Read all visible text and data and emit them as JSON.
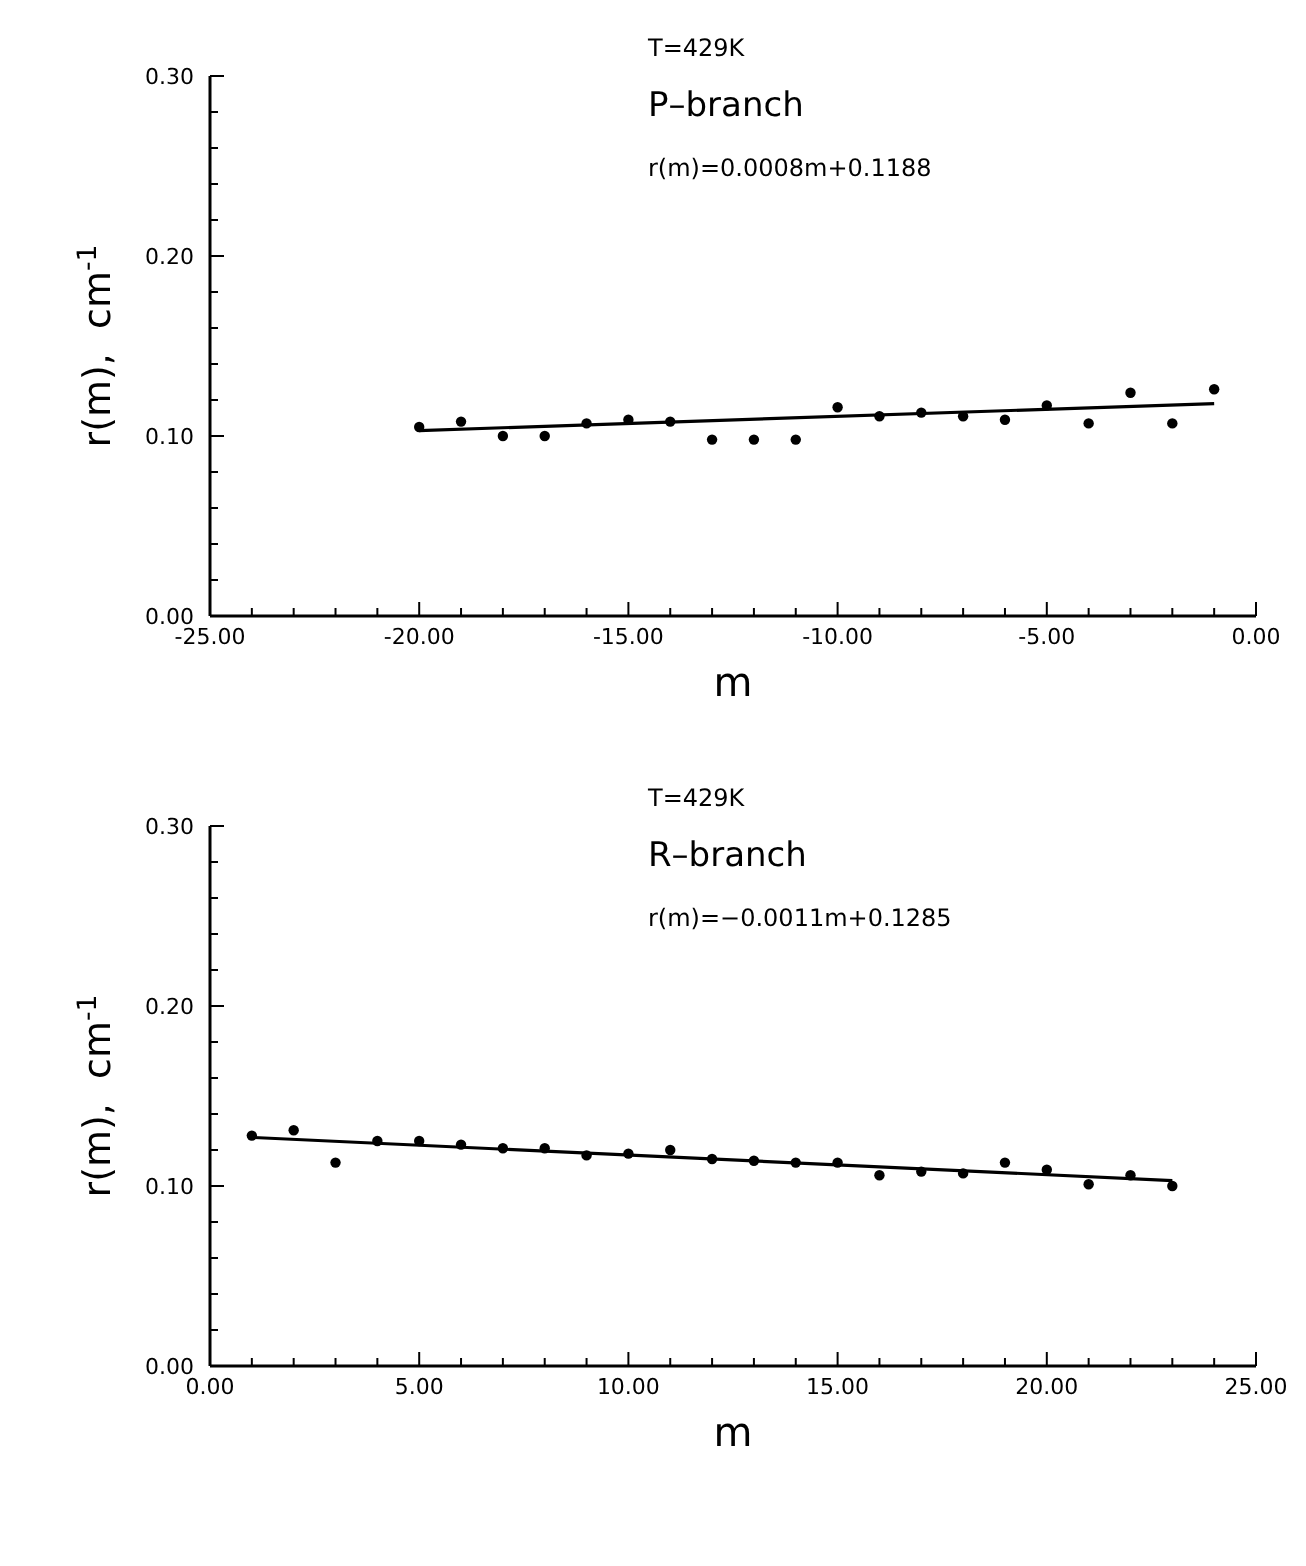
{
  "chart_data": [
    {
      "type": "scatter",
      "xlabel": "m",
      "ylabel": "r(m),  cm$^{-1}$",
      "annotations": [
        "T=429K",
        "P–branch",
        "r(m)=0.0008m+0.1188"
      ],
      "xlim": [
        -25,
        0
      ],
      "ylim": [
        0,
        0.3
      ],
      "xticks": [
        {
          "value": -25,
          "label": "-25.00"
        },
        {
          "value": -24,
          "label": null
        },
        {
          "value": -23,
          "label": null
        },
        {
          "value": -22,
          "label": null
        },
        {
          "value": -21,
          "label": null
        },
        {
          "value": -20,
          "label": "-20.00"
        },
        {
          "value": -19,
          "label": null
        },
        {
          "value": -18,
          "label": null
        },
        {
          "value": -17,
          "label": null
        },
        {
          "value": -16,
          "label": null
        },
        {
          "value": -15,
          "label": "-15.00"
        },
        {
          "value": -14,
          "label": null
        },
        {
          "value": -13,
          "label": null
        },
        {
          "value": -12,
          "label": null
        },
        {
          "value": -11,
          "label": null
        },
        {
          "value": -10,
          "label": "-10.00"
        },
        {
          "value": -9,
          "label": null
        },
        {
          "value": -8,
          "label": null
        },
        {
          "value": -7,
          "label": null
        },
        {
          "value": -6,
          "label": null
        },
        {
          "value": -5,
          "label": "-5.00"
        },
        {
          "value": -4,
          "label": null
        },
        {
          "value": -3,
          "label": null
        },
        {
          "value": -2,
          "label": null
        },
        {
          "value": -1,
          "label": null
        },
        {
          "value": 0,
          "label": "0.00"
        }
      ],
      "yticks": [
        {
          "value": 0,
          "label": "0.00"
        },
        {
          "value": 0.02,
          "label": null
        },
        {
          "value": 0.04,
          "label": null
        },
        {
          "value": 0.06,
          "label": null
        },
        {
          "value": 0.08,
          "label": null
        },
        {
          "value": 0.1,
          "label": "0.10"
        },
        {
          "value": 0.12,
          "label": null
        },
        {
          "value": 0.14,
          "label": null
        },
        {
          "value": 0.16,
          "label": null
        },
        {
          "value": 0.18,
          "label": null
        },
        {
          "value": 0.2,
          "label": "0.20"
        },
        {
          "value": 0.22,
          "label": null
        },
        {
          "value": 0.24,
          "label": null
        },
        {
          "value": 0.26,
          "label": null
        },
        {
          "value": 0.28,
          "label": null
        },
        {
          "value": 0.3,
          "label": "0.30"
        }
      ],
      "marker": "circle",
      "series": [
        {
          "color": "#000000",
          "x": [
            -20,
            -19,
            -18,
            -17,
            -16,
            -15,
            -14,
            -13,
            -12,
            -11,
            -10,
            -9,
            -8,
            -7,
            -6,
            -5,
            -4,
            -3,
            -2,
            -1
          ],
          "values": [
            0.105,
            0.108,
            0.1,
            0.1,
            0.107,
            0.109,
            0.108,
            0.098,
            0.098,
            0.098,
            0.116,
            0.111,
            0.113,
            0.111,
            0.109,
            0.117,
            0.107,
            0.124,
            0.107,
            0.126
          ]
        },
        {
          "type": "line",
          "marker": "none",
          "color": "#000000",
          "x": [
            -20,
            -1
          ],
          "values": [
            0.103,
            0.118
          ]
        }
      ]
    },
    {
      "type": "scatter",
      "xlabel": "m",
      "ylabel": "r(m),  cm$^{-1}$",
      "annotations": [
        "T=429K",
        "R–branch",
        "r(m)=−0.0011m+0.1285"
      ],
      "xlim": [
        0,
        25
      ],
      "ylim": [
        0,
        0.3
      ],
      "xticks": [
        {
          "value": 0,
          "label": "0.00"
        },
        {
          "value": 1,
          "label": null
        },
        {
          "value": 2,
          "label": null
        },
        {
          "value": 3,
          "label": null
        },
        {
          "value": 4,
          "label": null
        },
        {
          "value": 5,
          "label": "5.00"
        },
        {
          "value": 6,
          "label": null
        },
        {
          "value": 7,
          "label": null
        },
        {
          "value": 8,
          "label": null
        },
        {
          "value": 9,
          "label": null
        },
        {
          "value": 10,
          "label": "10.00"
        },
        {
          "value": 11,
          "label": null
        },
        {
          "value": 12,
          "label": null
        },
        {
          "value": 13,
          "label": null
        },
        {
          "value": 14,
          "label": null
        },
        {
          "value": 15,
          "label": "15.00"
        },
        {
          "value": 16,
          "label": null
        },
        {
          "value": 17,
          "label": null
        },
        {
          "value": 18,
          "label": null
        },
        {
          "value": 19,
          "label": null
        },
        {
          "value": 20,
          "label": "20.00"
        },
        {
          "value": 21,
          "label": null
        },
        {
          "value": 22,
          "label": null
        },
        {
          "value": 23,
          "label": null
        },
        {
          "value": 24,
          "label": null
        },
        {
          "value": 25,
          "label": "25.00"
        }
      ],
      "yticks": [
        {
          "value": 0,
          "label": "0.00"
        },
        {
          "value": 0.02,
          "label": null
        },
        {
          "value": 0.04,
          "label": null
        },
        {
          "value": 0.06,
          "label": null
        },
        {
          "value": 0.08,
          "label": null
        },
        {
          "value": 0.1,
          "label": "0.10"
        },
        {
          "value": 0.12,
          "label": null
        },
        {
          "value": 0.14,
          "label": null
        },
        {
          "value": 0.16,
          "label": null
        },
        {
          "value": 0.18,
          "label": null
        },
        {
          "value": 0.2,
          "label": "0.20"
        },
        {
          "value": 0.22,
          "label": null
        },
        {
          "value": 0.24,
          "label": null
        },
        {
          "value": 0.26,
          "label": null
        },
        {
          "value": 0.28,
          "label": null
        },
        {
          "value": 0.3,
          "label": "0.30"
        }
      ],
      "marker": "circle",
      "series": [
        {
          "color": "#000000",
          "x": [
            1,
            2,
            3,
            4,
            5,
            6,
            7,
            8,
            9,
            10,
            11,
            12,
            13,
            14,
            15,
            16,
            17,
            18,
            19,
            20,
            21,
            22,
            23
          ],
          "values": [
            0.128,
            0.131,
            0.113,
            0.125,
            0.125,
            0.123,
            0.121,
            0.121,
            0.117,
            0.118,
            0.12,
            0.115,
            0.114,
            0.113,
            0.113,
            0.106,
            0.108,
            0.107,
            0.113,
            0.109,
            0.101,
            0.106,
            0.1
          ]
        },
        {
          "type": "line",
          "marker": "none",
          "color": "#000000",
          "x": [
            1,
            23
          ],
          "values": [
            0.127,
            0.103
          ]
        }
      ]
    }
  ]
}
